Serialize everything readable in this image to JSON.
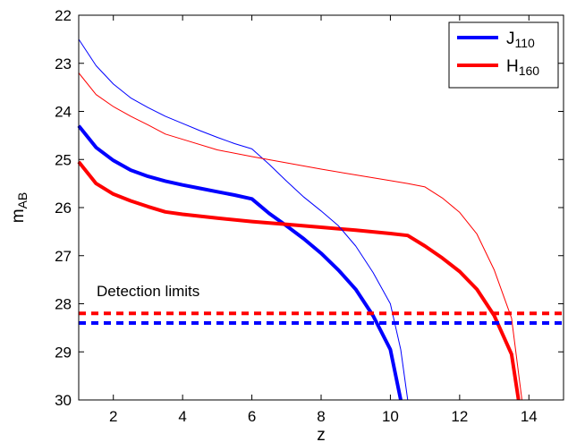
{
  "chart_data": {
    "type": "line",
    "title": "",
    "xlabel": "z",
    "ylabel": "m",
    "ylabel_sub": "AB",
    "xlim": [
      1,
      15
    ],
    "ylim": [
      22,
      30
    ],
    "y_reversed": true,
    "grid": false,
    "legend_position": "top-right",
    "x_ticks": [
      2,
      4,
      6,
      8,
      10,
      12,
      14
    ],
    "y_ticks": [
      22,
      23,
      24,
      25,
      26,
      27,
      28,
      29,
      30
    ],
    "annotation": "Detection limits",
    "legend": [
      {
        "name": "J",
        "sub": "110",
        "color": "#0000ff"
      },
      {
        "name": "H",
        "sub": "160",
        "color": "#ff0000"
      }
    ],
    "series": [
      {
        "color": "#0000ff",
        "style": "thick",
        "x": [
          1,
          1.5,
          2,
          2.5,
          3,
          3.5,
          4,
          4.5,
          5,
          5.5,
          6,
          6.5,
          7,
          7.5,
          8,
          8.5,
          9,
          9.5,
          10,
          10.3
        ],
        "y": [
          24.3,
          24.75,
          25.02,
          25.22,
          25.35,
          25.45,
          25.53,
          25.6,
          25.67,
          25.74,
          25.82,
          26.12,
          26.38,
          26.65,
          26.95,
          27.3,
          27.7,
          28.25,
          28.95,
          30
        ]
      },
      {
        "color": "#ff0000",
        "style": "thick",
        "x": [
          1,
          1.5,
          2,
          2.5,
          3,
          3.5,
          4,
          5,
          6,
          7,
          8,
          9,
          10,
          10.5,
          11,
          11.5,
          12,
          12.5,
          13,
          13.5,
          13.7
        ],
        "y": [
          25.05,
          25.5,
          25.72,
          25.86,
          25.98,
          26.09,
          26.14,
          26.22,
          26.29,
          26.35,
          26.41,
          26.47,
          26.54,
          26.58,
          26.8,
          27.05,
          27.33,
          27.7,
          28.25,
          29.05,
          30
        ]
      },
      {
        "color": "#0000ff",
        "style": "thin",
        "x": [
          1,
          1.5,
          2,
          2.5,
          3,
          3.5,
          4,
          4.5,
          5,
          5.5,
          6,
          6.5,
          7,
          7.5,
          8,
          8.5,
          9,
          9.5,
          10,
          10.3,
          10.5
        ],
        "y": [
          22.5,
          23.05,
          23.43,
          23.72,
          23.92,
          24.1,
          24.25,
          24.4,
          24.54,
          24.67,
          24.78,
          25.1,
          25.45,
          25.78,
          26.07,
          26.38,
          26.8,
          27.35,
          28.0,
          28.95,
          30
        ]
      },
      {
        "color": "#ff0000",
        "style": "thin",
        "x": [
          1,
          1.5,
          2,
          2.5,
          3,
          3.5,
          4,
          5,
          6,
          7,
          8,
          9,
          10,
          10.5,
          11,
          11.5,
          12,
          12.5,
          13,
          13.5,
          13.8
        ],
        "y": [
          23.2,
          23.65,
          23.9,
          24.1,
          24.28,
          24.47,
          24.58,
          24.8,
          24.94,
          25.07,
          25.2,
          25.32,
          25.44,
          25.5,
          25.57,
          25.8,
          26.1,
          26.55,
          27.3,
          28.3,
          30
        ]
      },
      {
        "color": "#ff0000",
        "style": "dashed",
        "x": [
          1,
          15
        ],
        "y": [
          28.2,
          28.2
        ]
      },
      {
        "color": "#0000ff",
        "style": "dashed",
        "x": [
          1,
          15
        ],
        "y": [
          28.4,
          28.4
        ]
      }
    ]
  }
}
